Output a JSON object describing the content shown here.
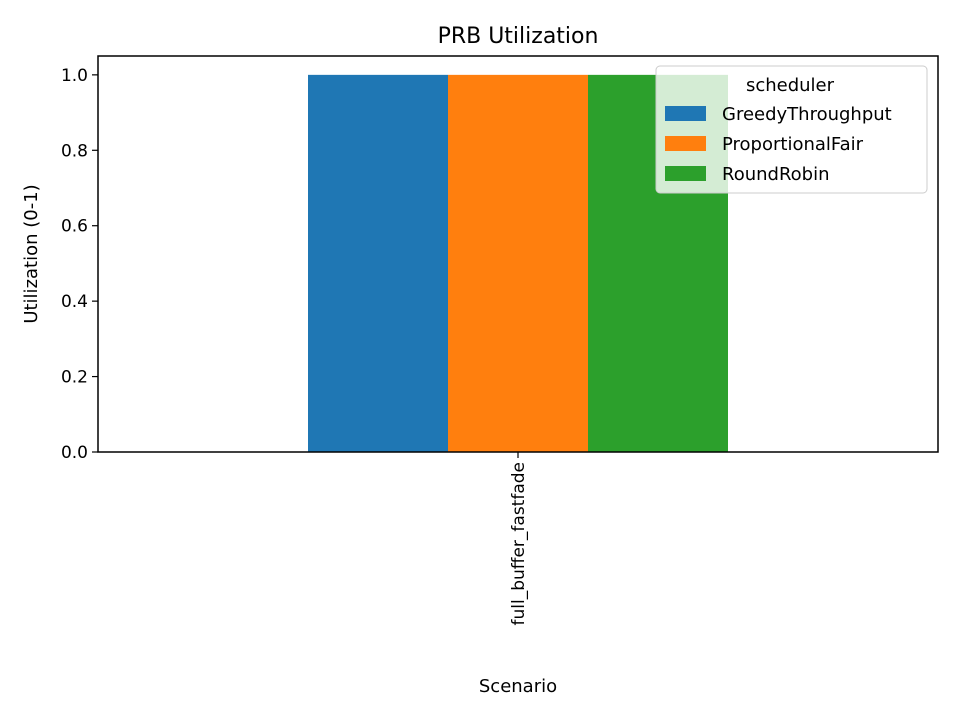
{
  "chart_data": {
    "type": "bar",
    "title": "PRB Utilization",
    "xlabel": "Scenario",
    "ylabel": "Utilization (0-1)",
    "categories": [
      "full_buffer_fastfade"
    ],
    "series": [
      {
        "name": "GreedyThroughput",
        "color": "#1f77b4",
        "values": [
          1.0
        ]
      },
      {
        "name": "ProportionalFair",
        "color": "#ff7f0e",
        "values": [
          1.0
        ]
      },
      {
        "name": "RoundRobin",
        "color": "#2ca02c",
        "values": [
          1.0
        ]
      }
    ],
    "ylim": [
      0,
      1.05
    ],
    "yticks": [
      0.0,
      0.2,
      0.4,
      0.6,
      0.8,
      1.0
    ],
    "ytick_labels": [
      "0.0",
      "0.2",
      "0.4",
      "0.6",
      "0.8",
      "1.0"
    ],
    "grid": false,
    "legend": {
      "title": "scheduler",
      "placement": "top-right"
    }
  }
}
